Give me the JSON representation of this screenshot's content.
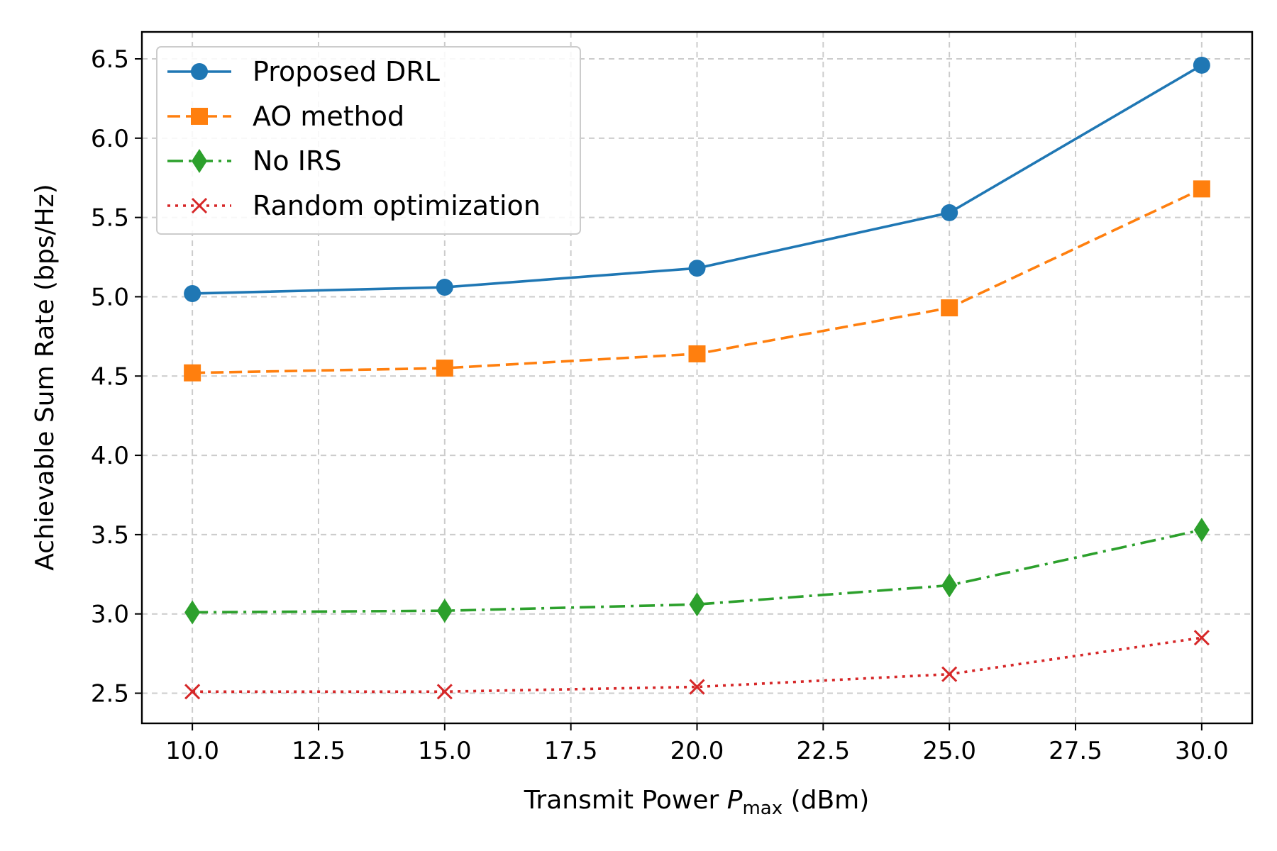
{
  "chart_data": {
    "type": "line",
    "xlabel_prefix": "Transmit Power ",
    "xlabel_var": "P",
    "xlabel_sub": "max",
    "xlabel_suffix": " (dBm)",
    "ylabel": "Achievable Sum Rate (bps/Hz)",
    "xlim": [
      9.0,
      31.0
    ],
    "ylim": [
      2.31,
      6.67
    ],
    "xticks": [
      10.0,
      12.5,
      15.0,
      17.5,
      20.0,
      22.5,
      25.0,
      27.5,
      30.0
    ],
    "xtick_labels": [
      "10.0",
      "12.5",
      "15.0",
      "17.5",
      "20.0",
      "22.5",
      "25.0",
      "27.5",
      "30.0"
    ],
    "yticks": [
      2.5,
      3.0,
      3.5,
      4.0,
      4.5,
      5.0,
      5.5,
      6.0,
      6.5
    ],
    "ytick_labels": [
      "2.5",
      "3.0",
      "3.5",
      "4.0",
      "4.5",
      "5.0",
      "5.5",
      "6.0",
      "6.5"
    ],
    "grid": true,
    "legend_position": "top-left",
    "x": [
      10,
      15,
      20,
      25,
      30
    ],
    "series": [
      {
        "name": "Proposed DRL",
        "values": [
          5.02,
          5.06,
          5.18,
          5.53,
          6.46
        ],
        "color": "#1f77b4",
        "style": "solid",
        "marker": "circle"
      },
      {
        "name": "AO method",
        "values": [
          4.52,
          4.55,
          4.64,
          4.93,
          5.68
        ],
        "color": "#ff7f0e",
        "style": "dashed",
        "marker": "square"
      },
      {
        "name": "No IRS",
        "values": [
          3.01,
          3.02,
          3.06,
          3.18,
          3.53
        ],
        "color": "#2ca02c",
        "style": "dashdot",
        "marker": "diamond"
      },
      {
        "name": "Random optimization",
        "values": [
          2.51,
          2.51,
          2.54,
          2.62,
          2.85
        ],
        "color": "#d62728",
        "style": "dotted",
        "marker": "x"
      }
    ]
  }
}
